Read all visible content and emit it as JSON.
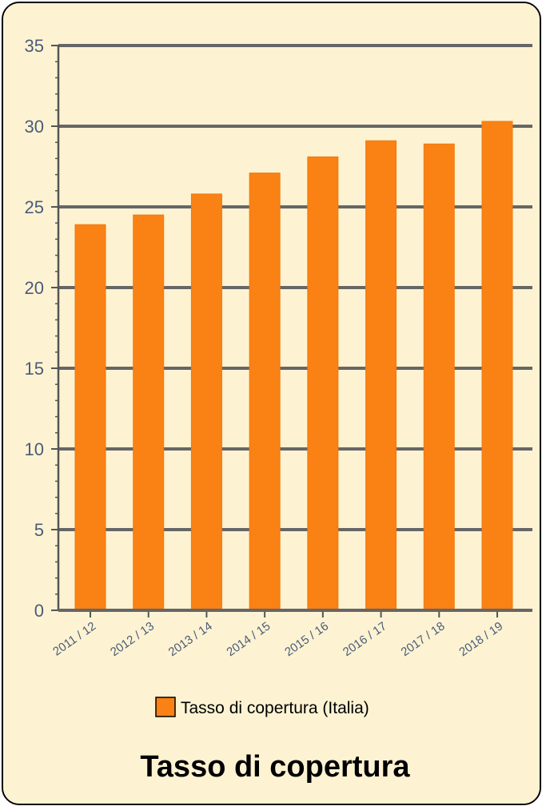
{
  "chart_data": {
    "type": "bar",
    "title": "Tasso di copertura",
    "xlabel": "",
    "ylabel": "",
    "categories": [
      "2011 / 12",
      "2012 / 13",
      "2013 / 14",
      "2014 / 15",
      "2015 / 16",
      "2016 / 17",
      "2017 / 18",
      "2018 / 19"
    ],
    "series": [
      {
        "name": "Tasso di copertura (Italia)",
        "values": [
          23.9,
          24.5,
          25.8,
          27.1,
          28.1,
          29.1,
          28.9,
          30.3
        ]
      }
    ],
    "ylim": [
      0,
      35
    ],
    "yticks": [
      0,
      5,
      10,
      15,
      20,
      25,
      30,
      35
    ],
    "grid": true,
    "legend_position": "bottom"
  },
  "colors": {
    "background": "#fdf3d2",
    "bar": "#fa8114",
    "bar_edge": "#f07a10",
    "gridline": "#666666",
    "axis": "#555555",
    "tick_label": "#4a5b7a",
    "legend_swatch": "#fa8114"
  }
}
